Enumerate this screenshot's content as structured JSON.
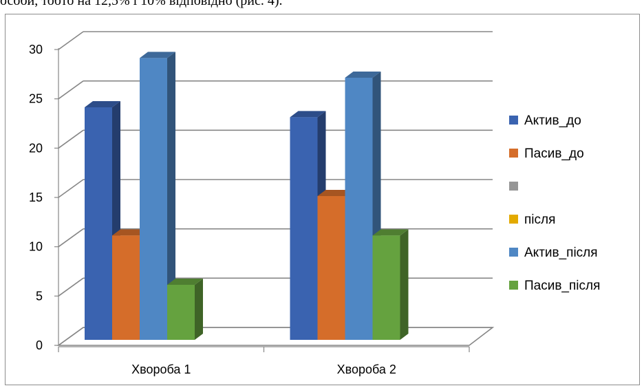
{
  "document": {
    "caption_fragment": "особи, тобто на 12,5% і 10% відповідно (рис. 4)."
  },
  "chart_data": {
    "type": "bar",
    "style": "3d-clustered-column",
    "categories": [
      "Хвороба 1",
      "Хвороба 2"
    ],
    "series": [
      {
        "name": "Актив_до",
        "color": "#3a63b0",
        "values": [
          24,
          23
        ]
      },
      {
        "name": "Пасив_до",
        "color": "#d56d2a",
        "values": [
          11,
          15
        ]
      },
      {
        "name": "",
        "color": "#969696",
        "values": [
          null,
          null
        ]
      },
      {
        "name": "після",
        "color": "#e3aa00",
        "values": [
          null,
          null
        ]
      },
      {
        "name": "Актив_після",
        "color": "#4f87c4",
        "values": [
          29,
          27
        ]
      },
      {
        "name": "Пасив_після",
        "color": "#65a23f",
        "values": [
          6,
          11
        ]
      }
    ],
    "yticks": [
      "0",
      "5",
      "10",
      "15",
      "20",
      "25",
      "30"
    ],
    "ylim": [
      0,
      30
    ],
    "grid": true,
    "legend": "right"
  }
}
